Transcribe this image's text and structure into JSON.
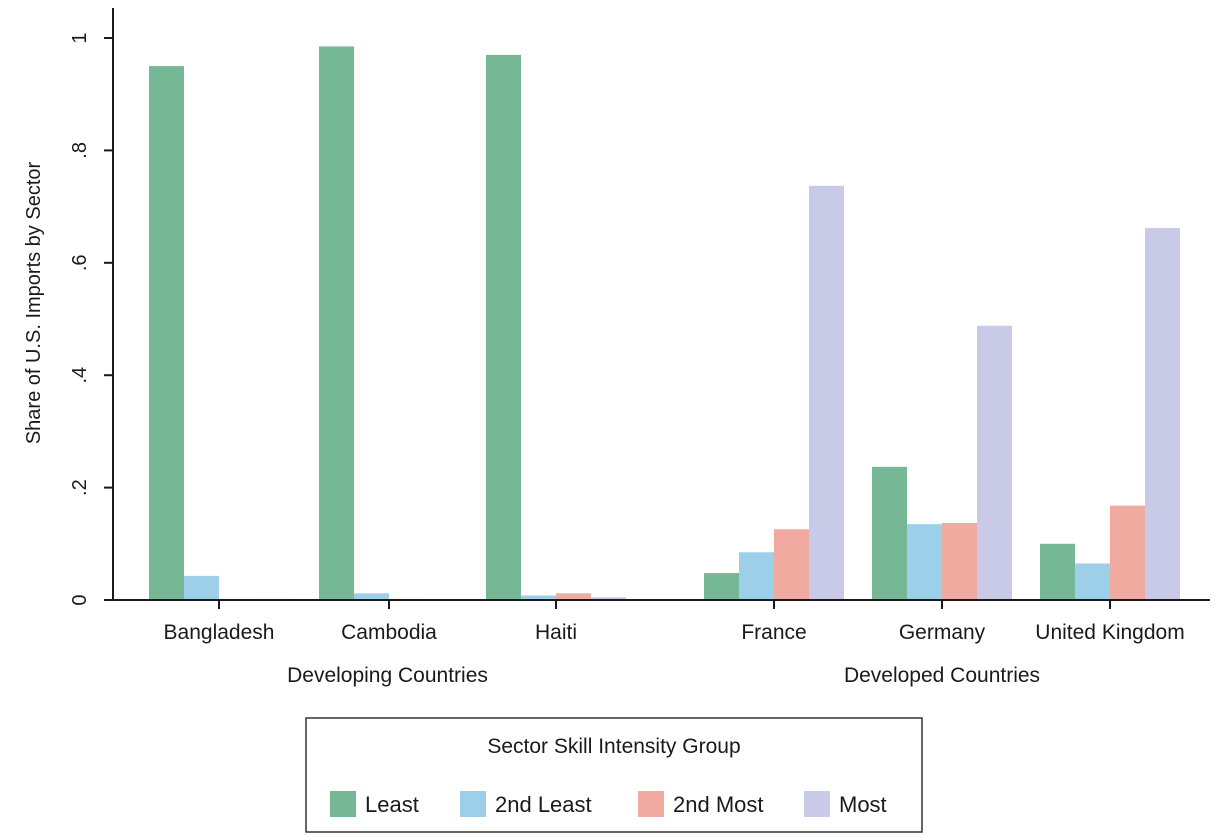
{
  "chart_data": {
    "type": "bar",
    "ylabel": "Share of U.S. Imports by Sector",
    "ylim": [
      0,
      1
    ],
    "yticks": [
      {
        "value": 0,
        "label": "0"
      },
      {
        "value": 0.2,
        "label": ".2"
      },
      {
        "value": 0.4,
        "label": ".4"
      },
      {
        "value": 0.6,
        "label": ".6"
      },
      {
        "value": 0.8,
        "label": ".8"
      },
      {
        "value": 1,
        "label": "1"
      }
    ],
    "groups": [
      {
        "label": "Developing Countries",
        "categories": [
          "Bangladesh",
          "Cambodia",
          "Haiti"
        ]
      },
      {
        "label": "Developed Countries",
        "categories": [
          "France",
          "Germany",
          "United Kingdom"
        ]
      }
    ],
    "categories": [
      "Bangladesh",
      "Cambodia",
      "Haiti",
      "France",
      "Germany",
      "United Kingdom"
    ],
    "series": [
      {
        "name": "Least",
        "color": "#76b896",
        "values": [
          0.95,
          0.985,
          0.97,
          0.048,
          0.237,
          0.1
        ]
      },
      {
        "name": "2nd Least",
        "color": "#9dd0e8",
        "values": [
          0.043,
          0.012,
          0.008,
          0.085,
          0.135,
          0.065
        ]
      },
      {
        "name": "2nd Most",
        "color": "#f0aaa0",
        "values": [
          0.002,
          0.002,
          0.012,
          0.126,
          0.137,
          0.168
        ]
      },
      {
        "name": "Most",
        "color": "#c8cae8",
        "values": [
          0.002,
          0.001,
          0.005,
          0.737,
          0.488,
          0.662
        ]
      }
    ],
    "legend": {
      "title": "Sector Skill Intensity Group",
      "placement": "bottom"
    },
    "grid": false
  }
}
